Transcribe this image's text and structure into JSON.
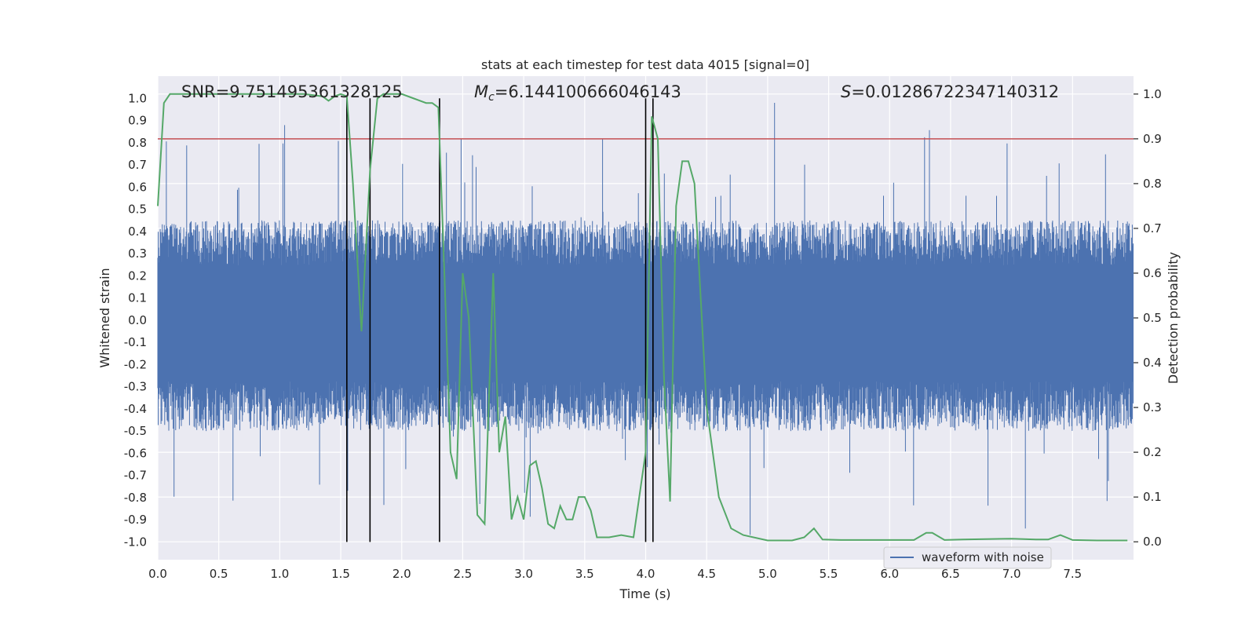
{
  "chart_data": {
    "type": "line",
    "title": "stats at each timestep for test data 4015 [signal=0]",
    "xlabel": "Time (s)",
    "ylabel_left": "Whitened strain",
    "ylabel_right": "Detection probability",
    "xlim": [
      0.0,
      8.0
    ],
    "ylim_left": [
      -1.08,
      1.1
    ],
    "ylim_right": [
      -0.04,
      1.04
    ],
    "x_ticks": [
      "0.0",
      "0.5",
      "1.0",
      "1.5",
      "2.0",
      "2.5",
      "3.0",
      "3.5",
      "4.0",
      "4.5",
      "5.0",
      "5.5",
      "6.0",
      "6.5",
      "7.0",
      "7.5"
    ],
    "y_ticks_left": [
      "1.0",
      "0.9",
      "0.8",
      "0.7",
      "0.6",
      "0.5",
      "0.4",
      "0.3",
      "0.2",
      "0.1",
      "0.0",
      "-0.1",
      "-0.2",
      "-0.3",
      "-0.4",
      "-0.5",
      "-0.6",
      "-0.7",
      "-0.8",
      "-0.9",
      "-1.0"
    ],
    "y_ticks_right": [
      "1.0",
      "0.9",
      "0.8",
      "0.7",
      "0.6",
      "0.5",
      "0.4",
      "0.3",
      "0.2",
      "0.1",
      "0.0"
    ],
    "annotations": {
      "snr": "SNR=9.751495361328125",
      "mc": "=6.144100666046143",
      "mc_symbol": "M",
      "mc_sub": "c",
      "s": "=0.01286722347140312",
      "s_symbol": "S"
    },
    "threshold": {
      "value": 0.9,
      "axis": "right",
      "color": "#c44e52"
    },
    "vertical_markers_x": [
      1.55,
      1.74,
      2.31,
      4.0,
      4.06
    ],
    "vertical_markers_range": [
      -1.0,
      1.0
    ],
    "series": [
      {
        "name": "waveform with noise",
        "axis": "left",
        "color": "#4c72b0",
        "description_envelope": {
          "typical_positive_peak": 0.45,
          "typical_negative_peak": -0.5,
          "max_positive": 1.0,
          "min_negative": -0.98
        }
      },
      {
        "axis": "right",
        "color": "#55a868",
        "x": [
          0.0,
          0.05,
          0.1,
          0.2,
          0.4,
          0.6,
          0.8,
          1.0,
          1.2,
          1.35,
          1.4,
          1.45,
          1.5,
          1.55,
          1.6,
          1.67,
          1.74,
          1.8,
          1.85,
          1.9,
          2.0,
          2.1,
          2.2,
          2.25,
          2.3,
          2.35,
          2.4,
          2.45,
          2.5,
          2.55,
          2.62,
          2.68,
          2.75,
          2.8,
          2.85,
          2.9,
          2.95,
          3.0,
          3.05,
          3.1,
          3.15,
          3.2,
          3.25,
          3.3,
          3.35,
          3.4,
          3.45,
          3.5,
          3.55,
          3.6,
          3.7,
          3.8,
          3.9,
          4.0,
          4.05,
          4.1,
          4.15,
          4.2,
          4.25,
          4.3,
          4.35,
          4.4,
          4.5,
          4.6,
          4.7,
          4.8,
          5.0,
          5.2,
          5.3,
          5.38,
          5.45,
          5.6,
          6.0,
          6.2,
          6.3,
          6.35,
          6.45,
          6.6,
          7.0,
          7.2,
          7.3,
          7.4,
          7.5,
          7.7,
          7.85,
          7.95
        ],
        "values": [
          0.75,
          0.98,
          1.0,
          1.0,
          1.0,
          1.0,
          1.0,
          1.0,
          1.0,
          0.995,
          0.985,
          0.995,
          1.0,
          0.995,
          0.8,
          0.47,
          0.83,
          0.99,
          1.0,
          1.0,
          1.0,
          0.99,
          0.98,
          0.98,
          0.97,
          0.6,
          0.2,
          0.14,
          0.6,
          0.5,
          0.06,
          0.04,
          0.6,
          0.2,
          0.28,
          0.05,
          0.1,
          0.05,
          0.17,
          0.18,
          0.12,
          0.04,
          0.03,
          0.08,
          0.05,
          0.05,
          0.1,
          0.1,
          0.07,
          0.01,
          0.01,
          0.015,
          0.01,
          0.2,
          0.95,
          0.9,
          0.37,
          0.09,
          0.75,
          0.85,
          0.85,
          0.8,
          0.3,
          0.1,
          0.03,
          0.015,
          0.003,
          0.003,
          0.01,
          0.03,
          0.005,
          0.004,
          0.004,
          0.004,
          0.02,
          0.02,
          0.004,
          0.005,
          0.007,
          0.005,
          0.005,
          0.015,
          0.004,
          0.003,
          0.003,
          0.003
        ]
      }
    ],
    "legend": {
      "placement": "lower-right",
      "entries": [
        "waveform with noise"
      ]
    },
    "grid": true,
    "colors": {
      "plot_background": "#eaeaf2",
      "grid": "#ffffff",
      "waveform": "#4c72b0",
      "probability": "#55a868",
      "threshold": "#c44e52",
      "markers": "#000000"
    }
  }
}
